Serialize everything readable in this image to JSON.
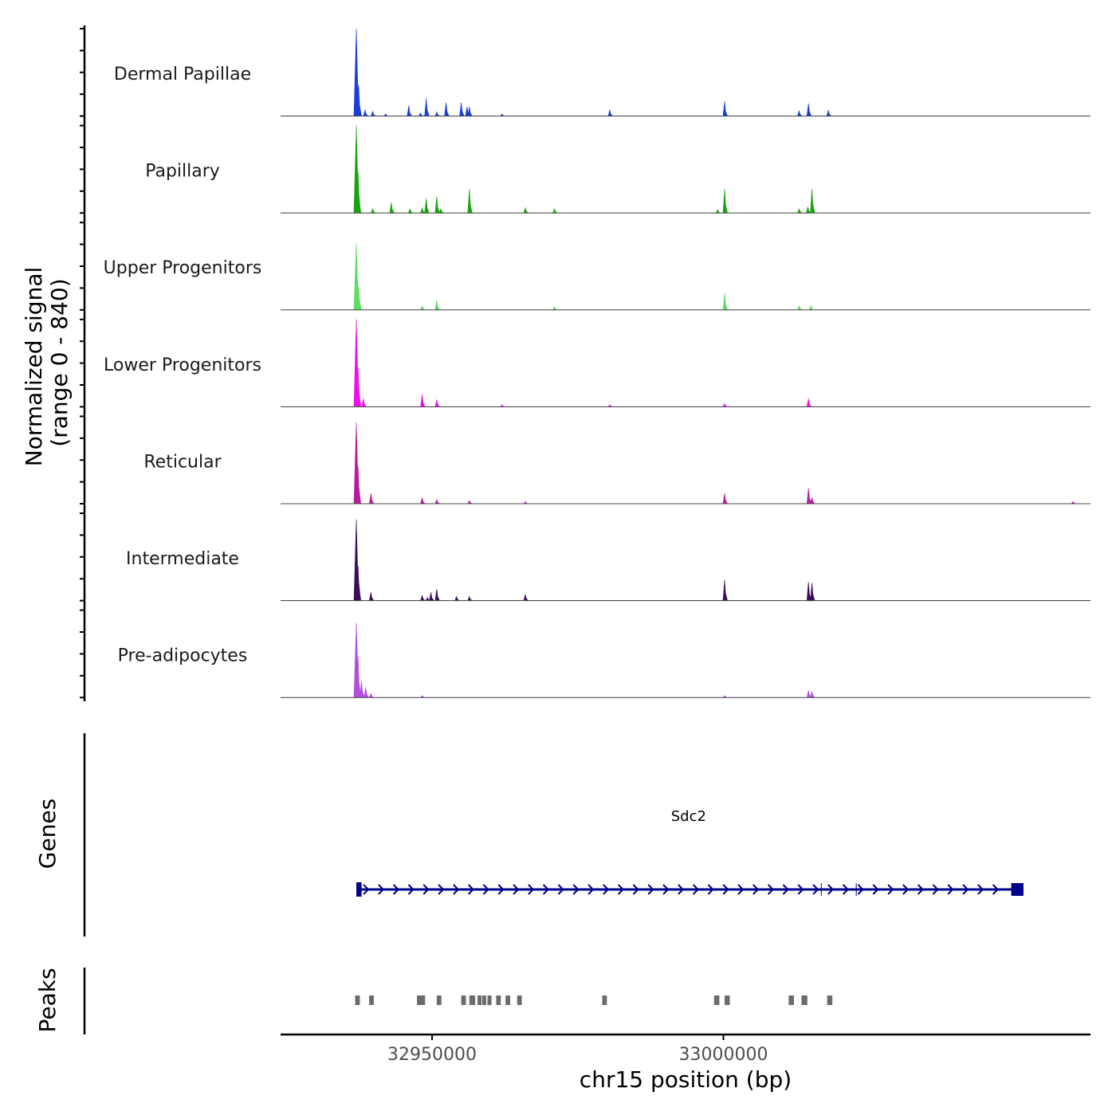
{
  "chart_data": {
    "type": "area",
    "title": "",
    "xlabel": "chr15 position (bp)",
    "ylabel": "Normalized signal",
    "ylabel_range": "(range 0 - 840)",
    "xlim": [
      32924000,
      33063000
    ],
    "ylim": [
      0,
      840
    ],
    "x_ticks": [
      {
        "value": 32950000,
        "label": "32950000"
      },
      {
        "value": 33000000,
        "label": "33000000"
      }
    ],
    "series": [
      {
        "name": "Dermal Papillae",
        "color": "#1a3fd6",
        "peaks": [
          [
            32937000,
            840
          ],
          [
            32937400,
            300
          ],
          [
            32939800,
            45
          ],
          [
            32950200,
            0
          ],
          [
            32954500,
            0
          ],
          [
            32942000,
            20
          ],
          [
            32948000,
            30
          ],
          [
            32950800,
            40
          ],
          [
            32955000,
            130
          ],
          [
            32956000,
            90
          ],
          [
            32938500,
            60
          ],
          [
            32946000,
            100
          ],
          [
            32949000,
            170
          ],
          [
            32952400,
            130
          ],
          [
            32956400,
            90
          ],
          [
            32962000,
            20
          ],
          [
            32980500,
            60
          ],
          [
            33000200,
            140
          ],
          [
            33013000,
            50
          ],
          [
            33014600,
            120
          ],
          [
            33018000,
            55
          ],
          [
            32931800,
            0
          ]
        ]
      },
      {
        "name": "Papillary",
        "color": "#17a40c",
        "peaks": [
          [
            32937000,
            840
          ],
          [
            32937300,
            400
          ],
          [
            32939800,
            40
          ],
          [
            32950000,
            0
          ],
          [
            32951500,
            40
          ],
          [
            32949000,
            140
          ],
          [
            32950800,
            160
          ],
          [
            32956400,
            230
          ],
          [
            32960800,
            0
          ],
          [
            32966000,
            50
          ],
          [
            32943000,
            100
          ],
          [
            32946200,
            40
          ],
          [
            32948300,
            50
          ],
          [
            32971000,
            40
          ],
          [
            33000200,
            230
          ],
          [
            32999000,
            30
          ],
          [
            33013000,
            40
          ],
          [
            33014500,
            60
          ],
          [
            33015200,
            230
          ]
        ]
      },
      {
        "name": "Upper Progenitors",
        "color": "#5fdc63",
        "peaks": [
          [
            32937000,
            640
          ],
          [
            32937400,
            230
          ],
          [
            32948300,
            40
          ],
          [
            32950800,
            90
          ],
          [
            32971000,
            30
          ],
          [
            33000200,
            160
          ],
          [
            33013000,
            40
          ],
          [
            33015000,
            40
          ]
        ]
      },
      {
        "name": "Lower Progenitors",
        "color": "#f00fe6",
        "peaks": [
          [
            32937000,
            840
          ],
          [
            32937300,
            380
          ],
          [
            32938200,
            80
          ],
          [
            32948300,
            120
          ],
          [
            32950800,
            70
          ],
          [
            32962000,
            20
          ],
          [
            33000200,
            30
          ],
          [
            33014600,
            80
          ],
          [
            32980500,
            20
          ]
        ]
      },
      {
        "name": "Reticular",
        "color": "#b81aa2",
        "peaks": [
          [
            32937000,
            780
          ],
          [
            32937300,
            360
          ],
          [
            32939500,
            100
          ],
          [
            32948300,
            60
          ],
          [
            32950800,
            40
          ],
          [
            32956400,
            30
          ],
          [
            32966000,
            20
          ],
          [
            33000200,
            100
          ],
          [
            33014600,
            150
          ],
          [
            33015200,
            60
          ],
          [
            33060000,
            20
          ]
        ]
      },
      {
        "name": "Intermediate",
        "color": "#3a0f5c",
        "peaks": [
          [
            32937000,
            780
          ],
          [
            32937300,
            330
          ],
          [
            32939500,
            80
          ],
          [
            32948300,
            50
          ],
          [
            32949200,
            30
          ],
          [
            32950800,
            110
          ],
          [
            32949800,
            80
          ],
          [
            32954200,
            40
          ],
          [
            32956400,
            40
          ],
          [
            32966000,
            60
          ],
          [
            33000200,
            200
          ],
          [
            33014600,
            180
          ],
          [
            33015200,
            170
          ]
        ]
      },
      {
        "name": "Pre-adipocytes",
        "color": "#b34fe0",
        "peaks": [
          [
            32937000,
            720
          ],
          [
            32937300,
            400
          ],
          [
            32937900,
            160
          ],
          [
            32938600,
            100
          ],
          [
            32939500,
            40
          ],
          [
            32948300,
            20
          ],
          [
            33014600,
            70
          ],
          [
            33015200,
            60
          ],
          [
            33000200,
            20
          ]
        ]
      }
    ],
    "genes": [
      {
        "name": "Sdc2",
        "start": 32937000,
        "end": 33050500,
        "strand": "+",
        "color": "#00008b",
        "exons": [
          [
            32937000,
            32937900
          ],
          [
            33049400,
            33051500
          ]
        ],
        "introns_marks": [
          33016800,
          33022800
        ]
      }
    ],
    "peaks_track": {
      "label": "Peaks",
      "color": "#6b6b6b",
      "regions": [
        [
          32936800,
          32937600
        ],
        [
          32939200,
          32940000
        ],
        [
          32947400,
          32948800
        ],
        [
          32950800,
          32951600
        ],
        [
          32955000,
          32955800
        ],
        [
          32956400,
          32957400
        ],
        [
          32957800,
          32958400
        ],
        [
          32958600,
          32959200
        ],
        [
          32959500,
          32960200
        ],
        [
          32961000,
          32961800
        ],
        [
          32962600,
          32963400
        ],
        [
          32964600,
          32965400
        ],
        [
          32979200,
          32980000
        ],
        [
          32998400,
          32999300
        ],
        [
          33000200,
          33001100
        ],
        [
          33011200,
          33012100
        ],
        [
          33013400,
          33014400
        ],
        [
          33017800,
          33018700
        ]
      ]
    },
    "genes_label": "Genes"
  }
}
